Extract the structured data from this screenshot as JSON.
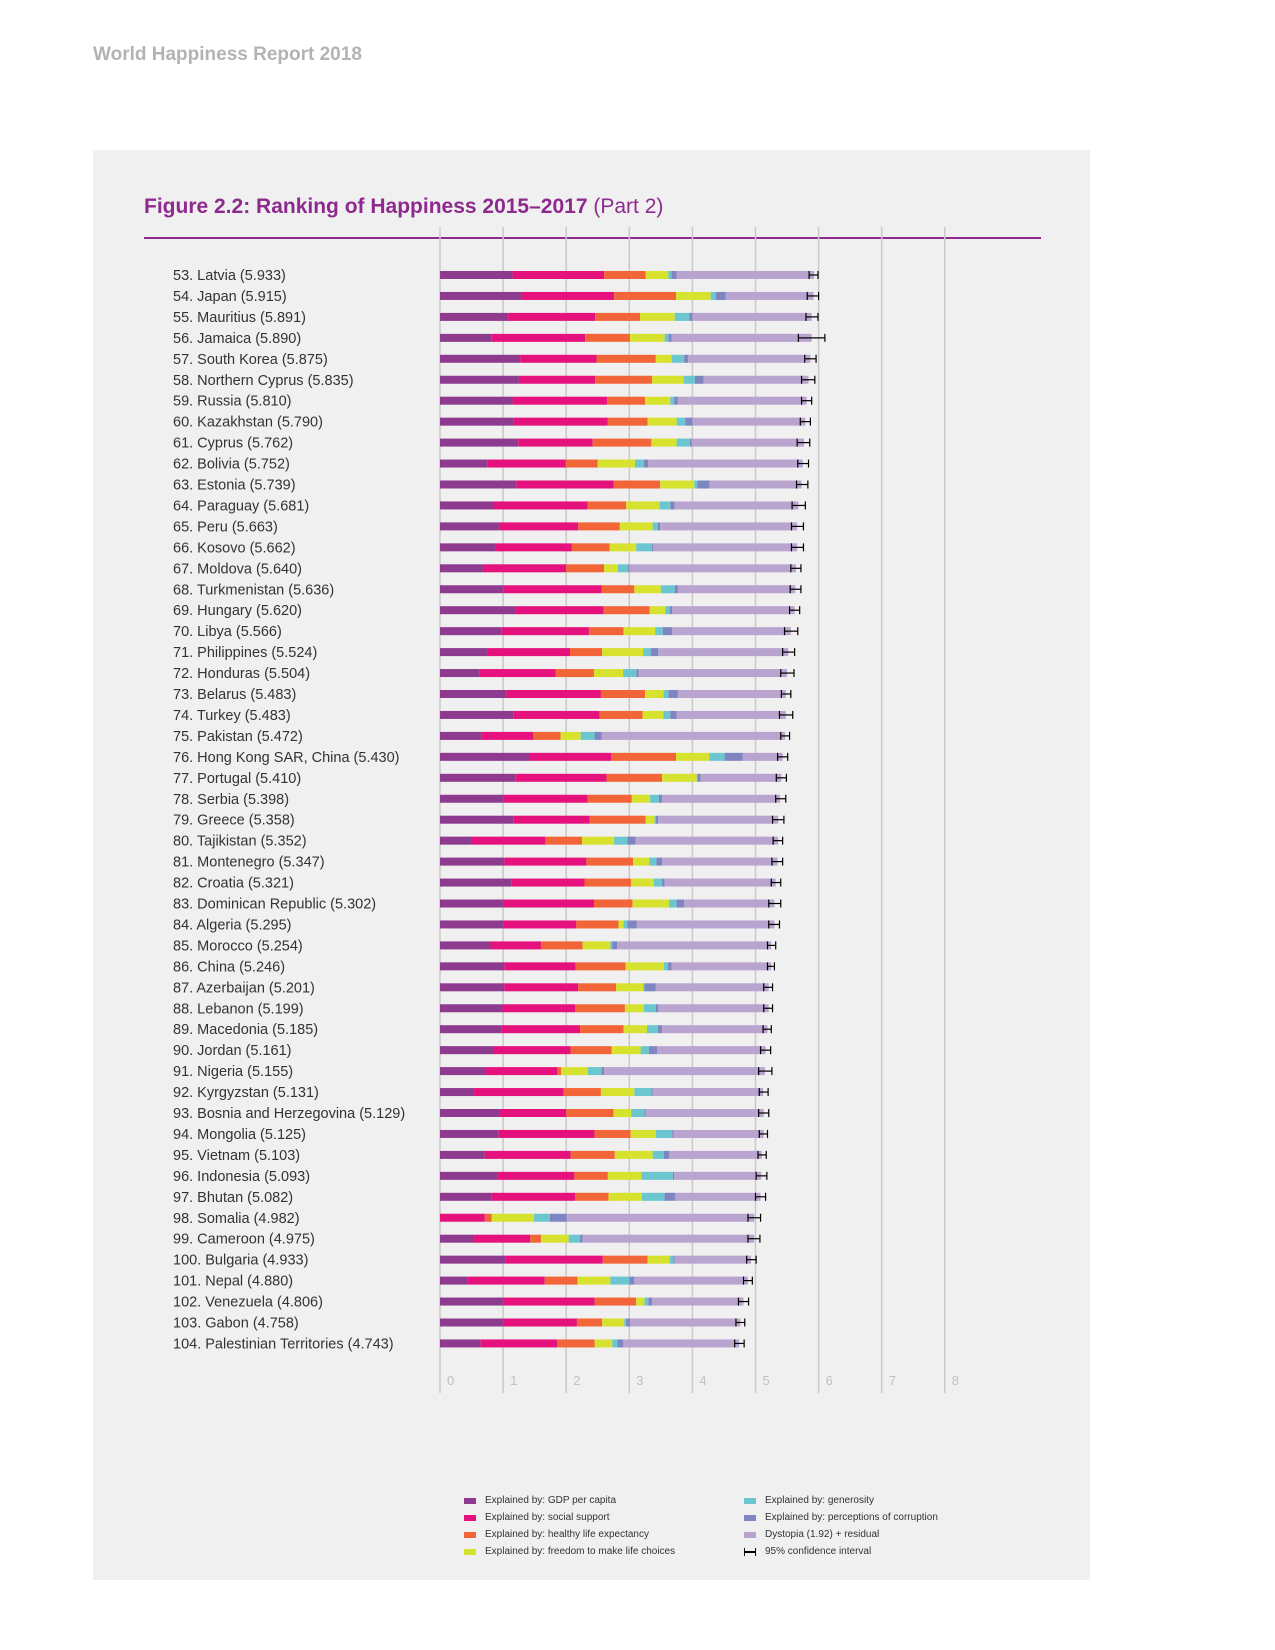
{
  "header": {
    "report_title": "World Happiness Report 2018"
  },
  "figure": {
    "title_bold": "Figure 2.2: Ranking of Happiness 2015–2017",
    "title_part": "(Part 2)"
  },
  "colors": {
    "gdp": "#8e3a8e",
    "social": "#e5127d",
    "health": "#f26539",
    "freedom": "#d7e22f",
    "generosity": "#6cc6d0",
    "corruption": "#7e86c2",
    "dystopia": "#b9a3cf",
    "title": "#8e2a8e",
    "grid": "#c9c9c9"
  },
  "legend": {
    "gdp": "Explained by: GDP per capita",
    "social": "Explained by: social support",
    "health": "Explained by: healthy life expectancy",
    "freedom": "Explained by: freedom to make life choices",
    "generosity": "Explained by: generosity",
    "corruption": "Explained by: perceptions of corruption",
    "dystopia": "Dystopia (1.92) + residual",
    "ci": "95% confidence interval"
  },
  "chart_data": {
    "type": "bar",
    "orientation": "horizontal-stacked",
    "xlim": [
      0,
      8
    ],
    "ticks": [
      0,
      1,
      2,
      3,
      4,
      5,
      6,
      7,
      8
    ],
    "series": [
      "gdp",
      "social",
      "health",
      "freedom",
      "generosity",
      "corruption",
      "dystopia"
    ],
    "rows": [
      {
        "label": "53.  Latvia (5.933)",
        "score": 5.933,
        "ci": [
          5.85,
          5.99
        ],
        "v": [
          1.15,
          1.45,
          0.66,
          0.36,
          0.05,
          0.08,
          2.18
        ]
      },
      {
        "label": "54.  Japan (5.915)",
        "score": 5.915,
        "ci": [
          5.82,
          6.0
        ],
        "v": [
          1.29,
          1.47,
          0.98,
          0.55,
          0.08,
          0.16,
          1.39
        ]
      },
      {
        "label": "55.  Mauritius (5.891)",
        "score": 5.891,
        "ci": [
          5.8,
          5.99
        ],
        "v": [
          1.08,
          1.38,
          0.71,
          0.55,
          0.23,
          0.05,
          1.89
        ]
      },
      {
        "label": "56.  Jamaica (5.890)",
        "score": 5.89,
        "ci": [
          5.68,
          6.1
        ],
        "v": [
          0.82,
          1.48,
          0.71,
          0.55,
          0.06,
          0.05,
          2.22
        ]
      },
      {
        "label": "57.  South Korea (5.875)",
        "score": 5.875,
        "ci": [
          5.78,
          5.96
        ],
        "v": [
          1.27,
          1.21,
          0.94,
          0.25,
          0.2,
          0.06,
          1.94
        ]
      },
      {
        "label": "58.  Northern Cyprus (5.835)",
        "score": 5.835,
        "ci": [
          5.73,
          5.94
        ],
        "v": [
          1.25,
          1.21,
          0.9,
          0.5,
          0.18,
          0.14,
          1.66
        ]
      },
      {
        "label": "59.  Russia (5.810)",
        "score": 5.81,
        "ci": [
          5.73,
          5.89
        ],
        "v": [
          1.15,
          1.5,
          0.6,
          0.4,
          0.06,
          0.06,
          2.04
        ]
      },
      {
        "label": "60.  Kazakhstan (5.790)",
        "score": 5.79,
        "ci": [
          5.71,
          5.87
        ],
        "v": [
          1.17,
          1.49,
          0.63,
          0.46,
          0.14,
          0.11,
          1.79
        ]
      },
      {
        "label": "61.  Cyprus (5.762)",
        "score": 5.762,
        "ci": [
          5.66,
          5.86
        ],
        "v": [
          1.24,
          1.18,
          0.93,
          0.4,
          0.21,
          0.03,
          1.78
        ]
      },
      {
        "label": "62.  Bolivia (5.752)",
        "score": 5.752,
        "ci": [
          5.67,
          5.84
        ],
        "v": [
          0.75,
          1.24,
          0.51,
          0.59,
          0.14,
          0.07,
          2.45
        ]
      },
      {
        "label": "63.  Estonia (5.739)",
        "score": 5.739,
        "ci": [
          5.65,
          5.83
        ],
        "v": [
          1.21,
          1.54,
          0.74,
          0.54,
          0.05,
          0.19,
          1.46
        ]
      },
      {
        "label": "64.  Paraguay (5.681)",
        "score": 5.681,
        "ci": [
          5.58,
          5.79
        ],
        "v": [
          0.84,
          1.5,
          0.61,
          0.53,
          0.17,
          0.07,
          1.96
        ]
      },
      {
        "label": "65.  Peru (5.663)",
        "score": 5.663,
        "ci": [
          5.57,
          5.76
        ],
        "v": [
          0.95,
          1.24,
          0.66,
          0.52,
          0.08,
          0.04,
          2.17
        ]
      },
      {
        "label": "66.  Kosovo (5.662)",
        "score": 5.662,
        "ci": [
          5.57,
          5.76
        ],
        "v": [
          0.87,
          1.22,
          0.6,
          0.42,
          0.25,
          0.02,
          2.28
        ]
      },
      {
        "label": "67.  Moldova (5.640)",
        "score": 5.64,
        "ci": [
          5.56,
          5.72
        ],
        "v": [
          0.68,
          1.32,
          0.6,
          0.22,
          0.16,
          0.02,
          2.64
        ]
      },
      {
        "label": "68.  Turkmenistan (5.636)",
        "score": 5.636,
        "ci": [
          5.55,
          5.72
        ],
        "v": [
          1.01,
          1.55,
          0.52,
          0.42,
          0.22,
          0.05,
          1.86
        ]
      },
      {
        "label": "69.  Hungary (5.620)",
        "score": 5.62,
        "ci": [
          5.54,
          5.7
        ],
        "v": [
          1.19,
          1.4,
          0.73,
          0.25,
          0.07,
          0.04,
          1.94
        ]
      },
      {
        "label": "70.  Libya (5.566)",
        "score": 5.566,
        "ci": [
          5.46,
          5.67
        ],
        "v": [
          0.98,
          1.38,
          0.55,
          0.5,
          0.12,
          0.15,
          1.88
        ]
      },
      {
        "label": "71.  Philippines (5.524)",
        "score": 5.524,
        "ci": [
          5.43,
          5.62
        ],
        "v": [
          0.76,
          1.3,
          0.51,
          0.65,
          0.12,
          0.12,
          2.06
        ]
      },
      {
        "label": "72.  Honduras (5.504)",
        "score": 5.504,
        "ci": [
          5.4,
          5.61
        ],
        "v": [
          0.62,
          1.21,
          0.61,
          0.46,
          0.21,
          0.04,
          2.35
        ]
      },
      {
        "label": "73.  Belarus (5.483)",
        "score": 5.483,
        "ci": [
          5.41,
          5.56
        ],
        "v": [
          1.05,
          1.5,
          0.7,
          0.29,
          0.08,
          0.15,
          1.71
        ]
      },
      {
        "label": "74.  Turkey (5.483)",
        "score": 5.483,
        "ci": [
          5.38,
          5.59
        ],
        "v": [
          1.17,
          1.36,
          0.68,
          0.33,
          0.11,
          0.1,
          1.73
        ]
      },
      {
        "label": "75.  Pakistan (5.472)",
        "score": 5.472,
        "ci": [
          5.4,
          5.54
        ],
        "v": [
          0.66,
          0.82,
          0.43,
          0.32,
          0.22,
          0.11,
          2.91
        ]
      },
      {
        "label": "76.  Hong Kong SAR, China (5.430)",
        "score": 5.43,
        "ci": [
          5.35,
          5.51
        ],
        "v": [
          1.41,
          1.3,
          1.03,
          0.53,
          0.24,
          0.29,
          0.63
        ]
      },
      {
        "label": "77.  Portugal (5.410)",
        "score": 5.41,
        "ci": [
          5.33,
          5.49
        ],
        "v": [
          1.2,
          1.44,
          0.88,
          0.55,
          0.01,
          0.05,
          1.28
        ]
      },
      {
        "label": "78.  Serbia (5.398)",
        "score": 5.398,
        "ci": [
          5.32,
          5.48
        ],
        "v": [
          1.0,
          1.34,
          0.7,
          0.29,
          0.14,
          0.05,
          1.87
        ]
      },
      {
        "label": "79.  Greece (5.358)",
        "score": 5.358,
        "ci": [
          5.27,
          5.45
        ],
        "v": [
          1.17,
          1.2,
          0.89,
          0.14,
          0.02,
          0.04,
          1.9
        ]
      },
      {
        "label": "80.  Tajikistan (5.352)",
        "score": 5.352,
        "ci": [
          5.28,
          5.43
        ],
        "v": [
          0.49,
          1.18,
          0.58,
          0.51,
          0.21,
          0.13,
          2.26
        ]
      },
      {
        "label": "81.  Montenegro (5.347)",
        "score": 5.347,
        "ci": [
          5.26,
          5.43
        ],
        "v": [
          1.02,
          1.3,
          0.74,
          0.26,
          0.11,
          0.09,
          1.83
        ]
      },
      {
        "label": "82.  Croatia (5.321)",
        "score": 5.321,
        "ci": [
          5.25,
          5.4
        ],
        "v": [
          1.13,
          1.16,
          0.74,
          0.36,
          0.13,
          0.04,
          1.76
        ]
      },
      {
        "label": "83.  Dominican Republic (5.302)",
        "score": 5.302,
        "ci": [
          5.21,
          5.4
        ],
        "v": [
          1.0,
          1.44,
          0.61,
          0.58,
          0.12,
          0.12,
          1.43
        ]
      },
      {
        "label": "84.  Algeria (5.295)",
        "score": 5.295,
        "ci": [
          5.21,
          5.38
        ],
        "v": [
          1.0,
          1.16,
          0.67,
          0.08,
          0.06,
          0.15,
          2.18
        ]
      },
      {
        "label": "85.  Morocco (5.254)",
        "score": 5.254,
        "ci": [
          5.19,
          5.32
        ],
        "v": [
          0.8,
          0.8,
          0.66,
          0.44,
          0.03,
          0.08,
          2.44
        ]
      },
      {
        "label": "86.  China (5.246)",
        "score": 5.246,
        "ci": [
          5.19,
          5.3
        ],
        "v": [
          1.02,
          1.13,
          0.79,
          0.61,
          0.06,
          0.06,
          1.58
        ]
      },
      {
        "label": "87.  Azerbaijan (5.201)",
        "score": 5.201,
        "ci": [
          5.13,
          5.27
        ],
        "v": [
          1.02,
          1.17,
          0.6,
          0.43,
          0.02,
          0.18,
          1.79
        ]
      },
      {
        "label": "88.  Lebanon (5.199)",
        "score": 5.199,
        "ci": [
          5.13,
          5.27
        ],
        "v": [
          0.99,
          1.15,
          0.79,
          0.3,
          0.19,
          0.04,
          1.75
        ]
      },
      {
        "label": "89.  Macedonia (5.185)",
        "score": 5.185,
        "ci": [
          5.12,
          5.25
        ],
        "v": [
          0.98,
          1.24,
          0.69,
          0.37,
          0.17,
          0.07,
          1.67
        ]
      },
      {
        "label": "90.  Jordan (5.161)",
        "score": 5.161,
        "ci": [
          5.08,
          5.24
        ],
        "v": [
          0.84,
          1.23,
          0.65,
          0.46,
          0.13,
          0.13,
          1.72
        ]
      },
      {
        "label": "91.  Nigeria (5.155)",
        "score": 5.155,
        "ci": [
          5.05,
          5.26
        ],
        "v": [
          0.72,
          1.14,
          0.06,
          0.42,
          0.22,
          0.04,
          2.55
        ]
      },
      {
        "label": "92.  Kyrgyzstan (5.131)",
        "score": 5.131,
        "ci": [
          5.06,
          5.2
        ],
        "v": [
          0.54,
          1.42,
          0.59,
          0.53,
          0.27,
          0.02,
          1.75
        ]
      },
      {
        "label": "93.  Bosnia and Herzegovina (5.129)",
        "score": 5.129,
        "ci": [
          5.05,
          5.21
        ],
        "v": [
          0.95,
          1.05,
          0.75,
          0.28,
          0.21,
          0.02,
          1.87
        ]
      },
      {
        "label": "94.  Mongolia (5.125)",
        "score": 5.125,
        "ci": [
          5.06,
          5.19
        ],
        "v": [
          0.93,
          1.52,
          0.57,
          0.4,
          0.26,
          0.02,
          1.43
        ]
      },
      {
        "label": "95.  Vietnam (5.103)",
        "score": 5.103,
        "ci": [
          5.04,
          5.17
        ],
        "v": [
          0.71,
          1.36,
          0.7,
          0.6,
          0.18,
          0.08,
          1.47
        ]
      },
      {
        "label": "96.  Indonesia (5.093)",
        "score": 5.093,
        "ci": [
          5.01,
          5.18
        ],
        "v": [
          0.91,
          1.22,
          0.53,
          0.53,
          0.5,
          0.02,
          1.38
        ]
      },
      {
        "label": "97.  Bhutan (5.082)",
        "score": 5.082,
        "ci": [
          5.0,
          5.16
        ],
        "v": [
          0.81,
          1.33,
          0.53,
          0.53,
          0.36,
          0.17,
          1.35
        ]
      },
      {
        "label": "98.  Somalia (4.982)",
        "score": 4.982,
        "ci": [
          4.88,
          5.08
        ],
        "v": [
          0.0,
          0.71,
          0.11,
          0.67,
          0.25,
          0.27,
          2.97
        ]
      },
      {
        "label": "99.  Cameroon (4.975)",
        "score": 4.975,
        "ci": [
          4.88,
          5.07
        ],
        "v": [
          0.54,
          0.89,
          0.17,
          0.44,
          0.18,
          0.04,
          2.72
        ]
      },
      {
        "label": "100. Bulgaria (4.933)",
        "score": 4.933,
        "ci": [
          4.86,
          5.01
        ],
        "v": [
          1.04,
          1.54,
          0.71,
          0.35,
          0.06,
          0.02,
          1.21
        ]
      },
      {
        "label": "101. Nepal (4.880)",
        "score": 4.88,
        "ci": [
          4.81,
          4.95
        ],
        "v": [
          0.43,
          1.23,
          0.52,
          0.52,
          0.3,
          0.08,
          1.8
        ]
      },
      {
        "label": "102. Venezuela (4.806)",
        "score": 4.806,
        "ci": [
          4.73,
          4.89
        ],
        "v": [
          1.0,
          1.45,
          0.66,
          0.13,
          0.06,
          0.06,
          1.45
        ]
      },
      {
        "label": "103. Gabon (4.758)",
        "score": 4.758,
        "ci": [
          4.69,
          4.83
        ],
        "v": [
          1.0,
          1.17,
          0.4,
          0.35,
          0.03,
          0.06,
          1.75
        ]
      },
      {
        "label": "104. Palestinian Territories (4.743)",
        "score": 4.743,
        "ci": [
          4.67,
          4.82
        ],
        "v": [
          0.64,
          1.22,
          0.59,
          0.28,
          0.08,
          0.09,
          1.84
        ]
      }
    ]
  }
}
